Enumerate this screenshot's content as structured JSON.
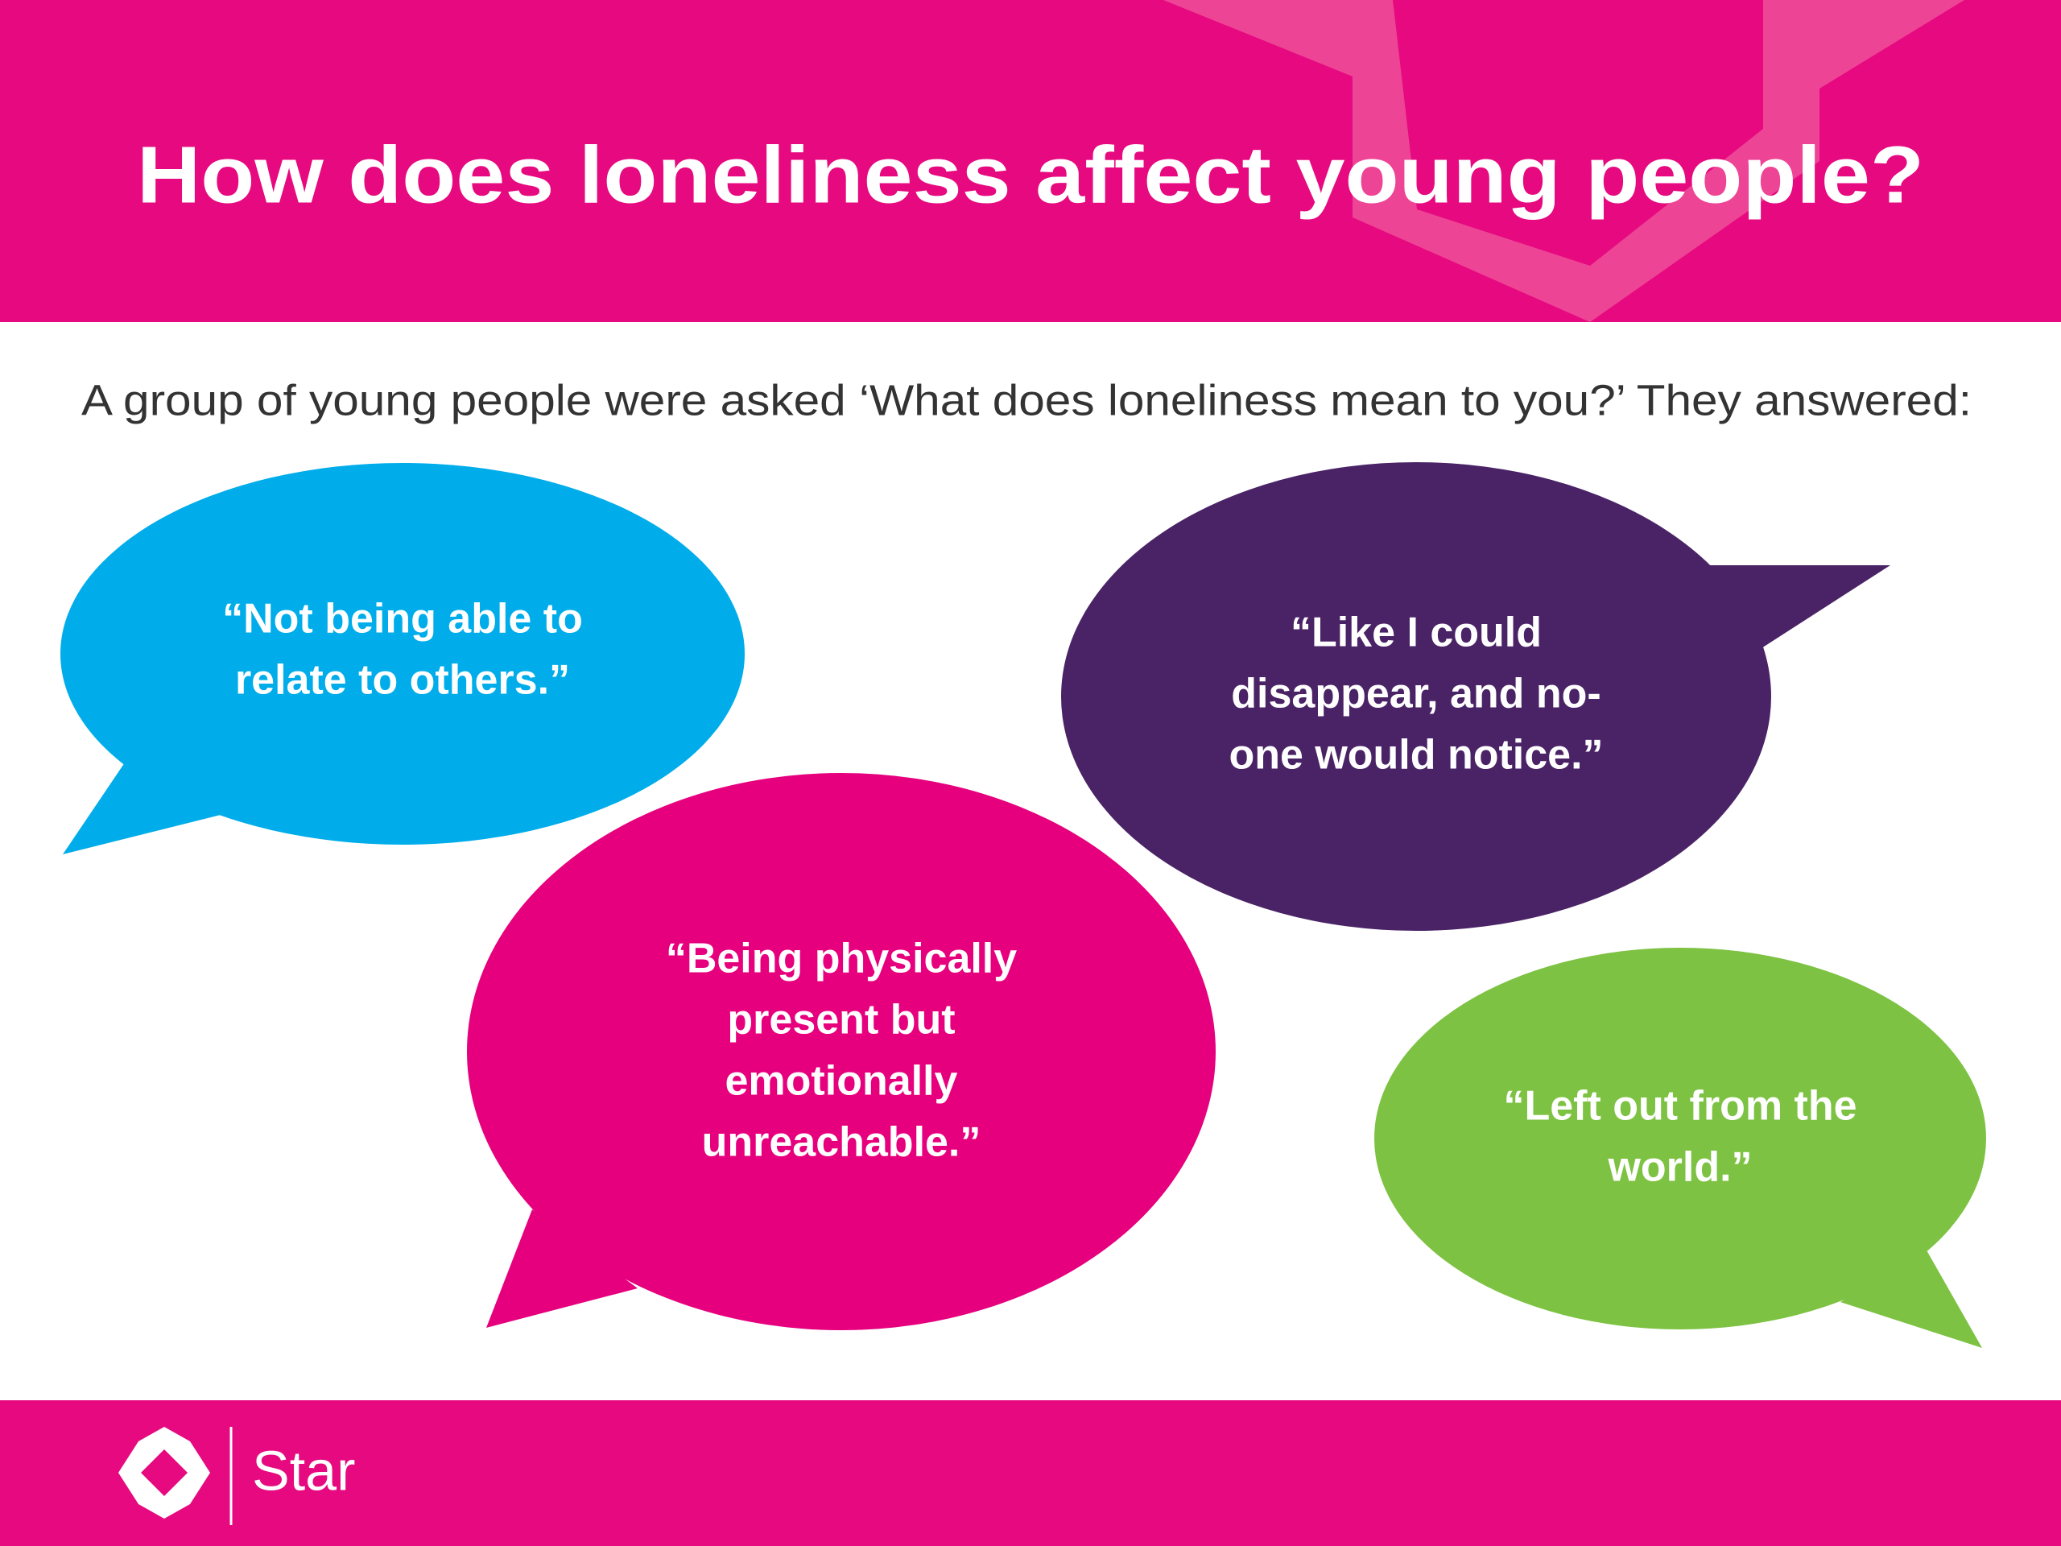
{
  "header": {
    "title": "How does loneliness affect young people?"
  },
  "subtitle": "A group of young people were asked ‘What does loneliness mean to you?’ They answered:",
  "bubbles": [
    {
      "lines": [
        "“Not being able to",
        "relate to others.”"
      ]
    },
    {
      "lines": [
        "“Like I could",
        "disappear, and no-",
        "one would notice.”"
      ]
    },
    {
      "lines": [
        "“Being physically",
        "present but",
        "emotionally",
        "unreachable.”"
      ]
    },
    {
      "lines": [
        "“Left out from the",
        "world.”"
      ]
    }
  ],
  "footer": {
    "brand": "Star"
  }
}
